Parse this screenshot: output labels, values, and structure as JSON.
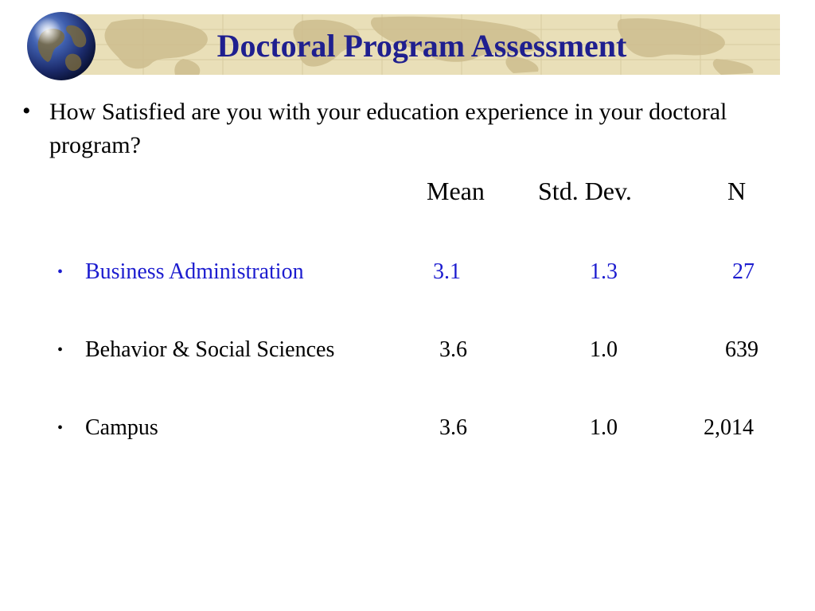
{
  "title": "Doctoral Program Assessment",
  "question": {
    "bullet": "•",
    "text": "How Satisfied are you with your education experience in your doctoral  program?"
  },
  "table": {
    "headers": {
      "mean": "Mean",
      "std_dev": "Std. Dev.",
      "n": "N"
    },
    "rows": [
      {
        "bullet": "•",
        "label": "Business Administration",
        "mean": "3.1",
        "std_dev": "1.3",
        "n": "27",
        "highlighted": true
      },
      {
        "bullet": "•",
        "label": "Behavior & Social Sciences",
        "mean": "3.6",
        "std_dev": "1.0",
        "n": "639",
        "highlighted": false
      },
      {
        "bullet": "•",
        "label": "Campus",
        "mean": "3.6",
        "std_dev": "1.0",
        "n": "2,014",
        "highlighted": false
      }
    ]
  },
  "colors": {
    "title": "#1f1f8f",
    "highlight_row": "#1c1ccf",
    "banner": "#e9dfb8",
    "map_land": "#c9b98a"
  },
  "icons": {
    "globe": "globe-icon"
  }
}
